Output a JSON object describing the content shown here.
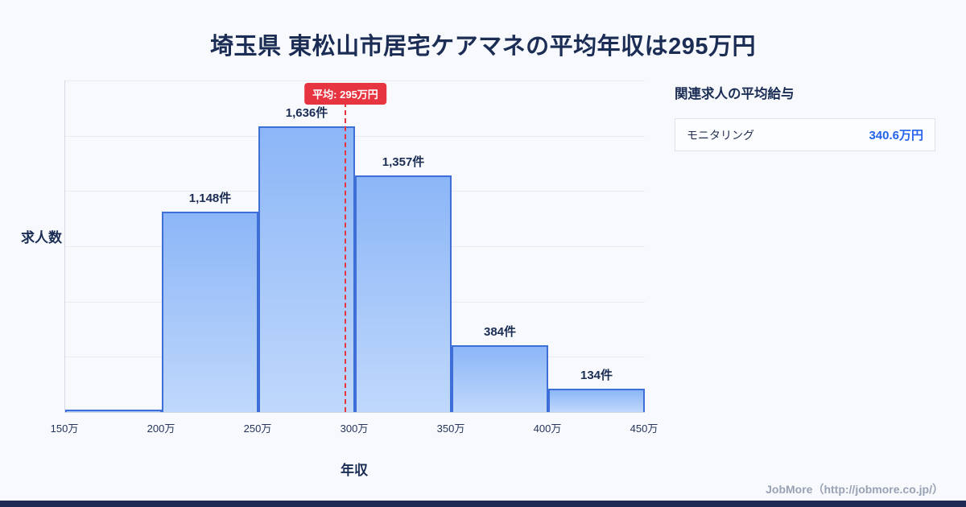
{
  "title": "埼玉県 東松山市居宅ケアマネの平均年収は295万円",
  "chart_data": {
    "type": "bar",
    "title": "埼玉県 東松山市居宅ケアマネの平均年収は295万円",
    "xlabel": "年収",
    "ylabel": "求人数",
    "x_ticks": [
      "150万",
      "200万",
      "250万",
      "300万",
      "350万",
      "400万",
      "450万"
    ],
    "x_range": [
      150,
      450
    ],
    "ylim": [
      0,
      1900
    ],
    "grid": "horizontal",
    "bins": [
      {
        "range": "150万-200万",
        "count": 0,
        "label": ""
      },
      {
        "range": "200万-250万",
        "count": 1148,
        "label": "1,148件"
      },
      {
        "range": "250万-300万",
        "count": 1636,
        "label": "1,636件"
      },
      {
        "range": "300万-350万",
        "count": 1357,
        "label": "1,357件"
      },
      {
        "range": "350万-400万",
        "count": 384,
        "label": "384件"
      },
      {
        "range": "400万-450万",
        "count": 134,
        "label": "134件"
      }
    ],
    "average": {
      "value": 295,
      "label": "平均: 295万円"
    },
    "colors": {
      "accent_red": "#e63440",
      "bar_border": "#3e6fd8",
      "bar_fill_top": "#8cb6f7",
      "bar_fill_bottom": "#c0d8fc",
      "title_navy": "#1b2d55",
      "value_blue": "#2563eb"
    }
  },
  "side_panel": {
    "heading": "関連求人の平均給与",
    "rows": [
      {
        "label": "モニタリング",
        "value": "340.6万円"
      }
    ]
  },
  "footer": {
    "credit": "JobMore（http://jobmore.co.jp/）"
  }
}
